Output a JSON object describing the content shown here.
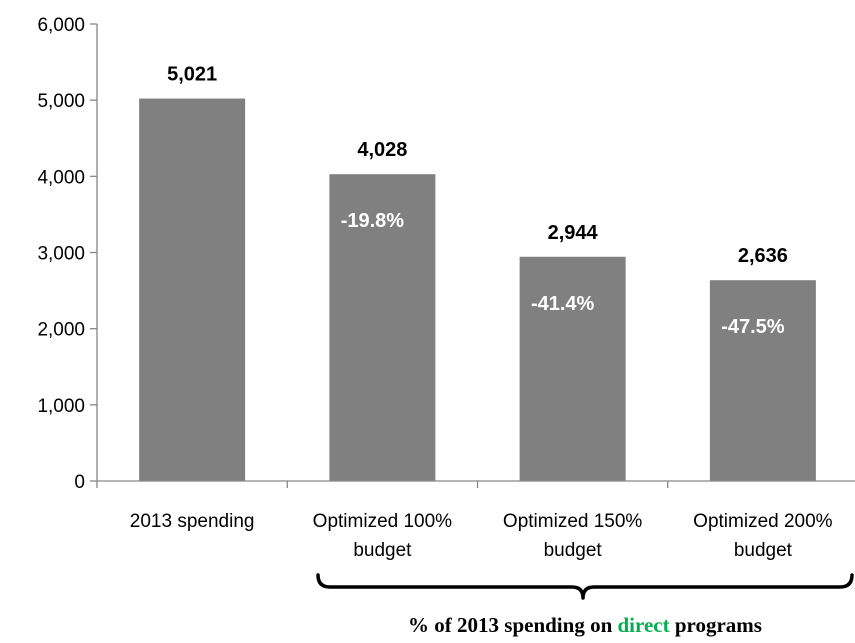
{
  "chart_data": {
    "type": "bar",
    "categories": [
      [
        "2013 spending"
      ],
      [
        "Optimized 100%",
        "budget"
      ],
      [
        "Optimized 150%",
        "budget"
      ],
      [
        "Optimized 200%",
        "budget"
      ]
    ],
    "values": [
      5021,
      4028,
      2944,
      2636
    ],
    "value_labels": [
      "5,021",
      "4,028",
      "2,944",
      "2,636"
    ],
    "percent_labels": [
      "",
      "-19.8%",
      "-41.4%",
      "-47.5%"
    ],
    "ylim": [
      0,
      6000
    ],
    "y_ticks": [
      0,
      1000,
      2000,
      3000,
      4000,
      5000,
      6000
    ],
    "y_tick_labels": [
      "0",
      "1,000",
      "2,000",
      "3,000",
      "4,000",
      "5,000",
      "6,000"
    ],
    "grid": false,
    "legend": "none",
    "bar_color": "#808080",
    "axis_color": "#868686",
    "bracket_note": {
      "prefix": "% of 2013 spending on ",
      "highlight": "direct",
      "suffix": " programs",
      "highlight_color": "#00b050"
    }
  }
}
